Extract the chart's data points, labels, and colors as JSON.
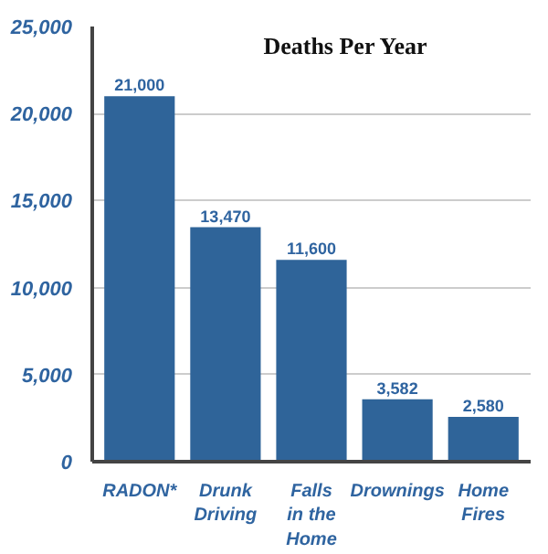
{
  "chart_data": {
    "type": "bar",
    "title": "Deaths Per Year",
    "categories": [
      "RADON*",
      "Drunk\nDriving",
      "Falls\nin the\nHome",
      "Drownings",
      "Home\nFires"
    ],
    "values": [
      21000,
      13470,
      11600,
      3582,
      2580
    ],
    "value_labels": [
      "21,000",
      "13,470",
      "11,600",
      "3,582",
      "2,580"
    ],
    "color": "#2f6499",
    "ylim": [
      0,
      25000
    ],
    "yticks": [
      0,
      {
        "value": 5000,
        "label": "5,000"
      },
      {
        "value": 10000,
        "label": "10,000"
      },
      {
        "value": 15000,
        "label": "15,000"
      },
      {
        "value": 20000,
        "label": "20,000"
      },
      {
        "value": 25000,
        "label": "25,000"
      }
    ],
    "grid": "y"
  }
}
